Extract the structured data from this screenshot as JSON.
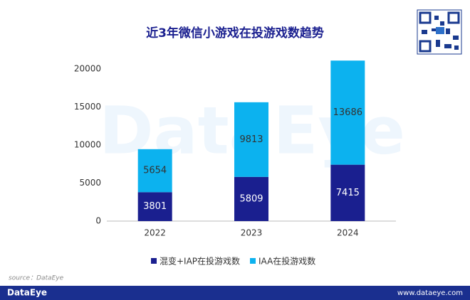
{
  "chart_data": {
    "type": "stacked_bar",
    "title": "近3年微信小游戏在投游戏数趋势",
    "categories": [
      "2022",
      "2023",
      "2024"
    ],
    "series": [
      {
        "name": "混变+IAP在投游戏数",
        "color": "#1a1f8f",
        "values": [
          3801,
          5809,
          7415
        ]
      },
      {
        "name": "IAA在投游戏数",
        "color": "#0cb2ef",
        "values": [
          5654,
          9813,
          13686
        ]
      }
    ],
    "ylim": [
      0,
      22000
    ],
    "yticks": [
      0,
      5000,
      10000,
      15000,
      20000
    ],
    "grid": false,
    "watermark": "DataEye",
    "source": "source：DataEye",
    "brand": "DataEye",
    "url": "www.dataeye.com"
  }
}
